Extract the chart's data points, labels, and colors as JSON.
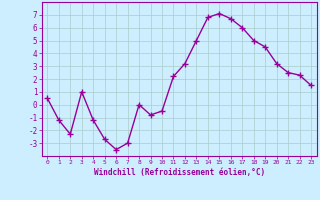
{
  "x": [
    0,
    1,
    2,
    3,
    4,
    5,
    6,
    7,
    8,
    9,
    10,
    11,
    12,
    13,
    14,
    15,
    16,
    17,
    18,
    19,
    20,
    21,
    22,
    23
  ],
  "y": [
    0.5,
    -1.2,
    -2.3,
    1.0,
    -1.2,
    -2.7,
    -3.5,
    -3.0,
    0.0,
    -0.8,
    -0.5,
    2.2,
    3.2,
    5.0,
    6.8,
    7.1,
    6.7,
    6.0,
    5.0,
    4.5,
    3.2,
    2.5,
    2.3,
    1.5
  ],
  "line_color": "#990099",
  "marker": "+",
  "marker_size": 4,
  "bg_color": "#cceeff",
  "grid_color": "#aacccc",
  "xlabel": "Windchill (Refroidissement éolien,°C)",
  "ylim": [
    -4,
    8
  ],
  "xlim": [
    -0.5,
    23.5
  ],
  "yticks": [
    -3,
    -2,
    -1,
    0,
    1,
    2,
    3,
    4,
    5,
    6,
    7
  ],
  "xticks": [
    0,
    1,
    2,
    3,
    4,
    5,
    6,
    7,
    8,
    9,
    10,
    11,
    12,
    13,
    14,
    15,
    16,
    17,
    18,
    19,
    20,
    21,
    22,
    23
  ],
  "tick_color": "#990099",
  "label_color": "#990099",
  "linewidth": 1.0
}
